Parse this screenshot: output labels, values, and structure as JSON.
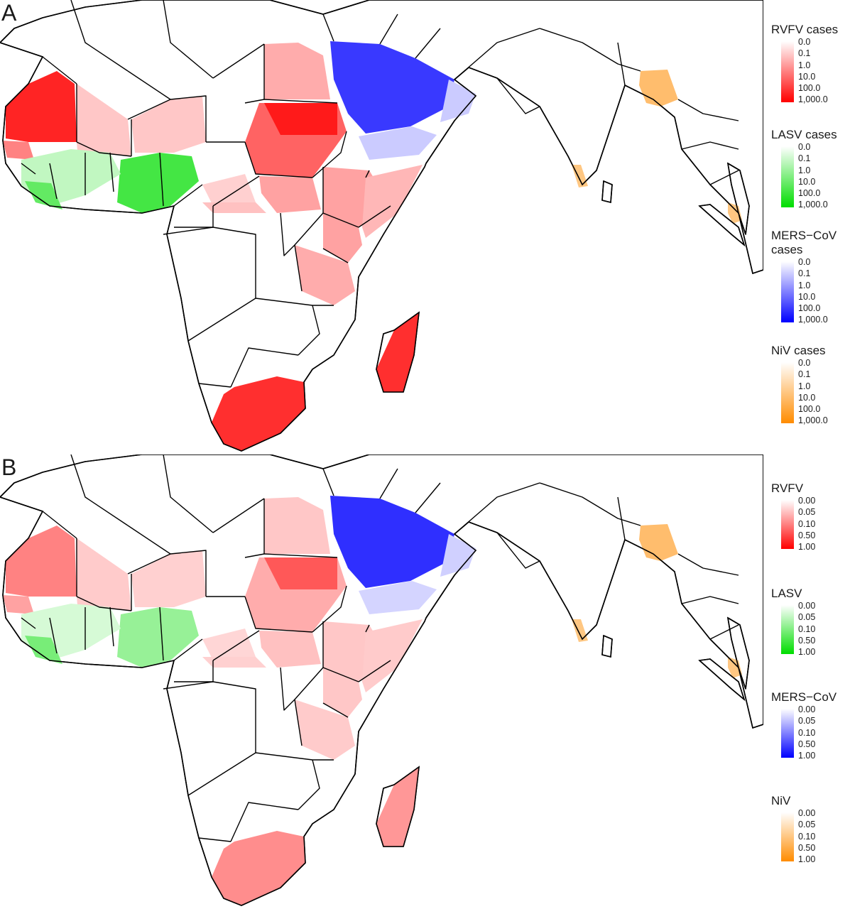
{
  "panels": [
    {
      "letter": "A",
      "legends": [
        {
          "title": "RVFV cases",
          "color": "#ff0000",
          "ticks": [
            "0.0",
            "0.1",
            "1.0",
            "10.0",
            "100.0",
            "1,000.0"
          ]
        },
        {
          "title": "LASV cases",
          "color": "#00dd00",
          "ticks": [
            "0.0",
            "0.1",
            "1.0",
            "10.0",
            "100.0",
            "1,000.0"
          ]
        },
        {
          "title": "MERS−CoV cases",
          "color": "#0000ff",
          "ticks": [
            "0.0",
            "0.1",
            "1.0",
            "10.0",
            "100.0",
            "1,000.0"
          ]
        },
        {
          "title": "NiV cases",
          "color": "#ff8c00",
          "ticks": [
            "0.0",
            "0.1",
            "1.0",
            "10.0",
            "100.0",
            "1,000.0"
          ]
        }
      ],
      "intensities": {
        "mauritania": 0.9,
        "senegal": 0.45,
        "mali": 0.12,
        "niger": 0.12,
        "egypt": 0.25,
        "sudan": 0.6,
        "sudan_north": 0.95,
        "south_sudan": 0.3,
        "ethiopia": 0.3,
        "kenya": 0.3,
        "somalia": 0.2,
        "tanzania": 0.25,
        "madagascar": 0.85,
        "south_africa": 0.85,
        "chad": 0.08,
        "car": 0.15,
        "nigeria": 0.75,
        "west_africa": 0.15,
        "liberia": 0.6,
        "arabia": 0.8,
        "yemen": 0.1,
        "oman": 0.1,
        "bangladesh": 0.55,
        "kerala": 0.45,
        "malaysia": 0.45
      }
    },
    {
      "letter": "B",
      "legends": [
        {
          "title": "RVFV",
          "color": "#ff0000",
          "ticks": [
            "0.00",
            "0.05",
            "0.10",
            "0.50",
            "1.00"
          ]
        },
        {
          "title": "LASV",
          "color": "#00dd00",
          "ticks": [
            "0.00",
            "0.05",
            "0.10",
            "0.50",
            "1.00"
          ]
        },
        {
          "title": "MERS−CoV",
          "color": "#0000ff",
          "ticks": [
            "0.00",
            "0.05",
            "0.10",
            "0.50",
            "1.00"
          ]
        },
        {
          "title": "NiV",
          "color": "#ff8c00",
          "ticks": [
            "0.00",
            "0.05",
            "0.10",
            "0.50",
            "1.00"
          ]
        }
      ],
      "intensities": {
        "mauritania": 0.45,
        "senegal": 0.3,
        "mali": 0.1,
        "niger": 0.08,
        "egypt": 0.12,
        "sudan": 0.25,
        "sudan_north": 0.65,
        "south_sudan": 0.15,
        "ethiopia": 0.12,
        "kenya": 0.12,
        "somalia": 0.1,
        "tanzania": 0.1,
        "madagascar": 0.35,
        "south_africa": 0.4,
        "chad": 0.05,
        "car": 0.08,
        "nigeria": 0.35,
        "west_africa": 0.05,
        "liberia": 0.5,
        "arabia": 0.85,
        "yemen": 0.06,
        "oman": 0.08,
        "bangladesh": 0.55,
        "kerala": 0.45,
        "malaysia": 0.45
      }
    }
  ]
}
